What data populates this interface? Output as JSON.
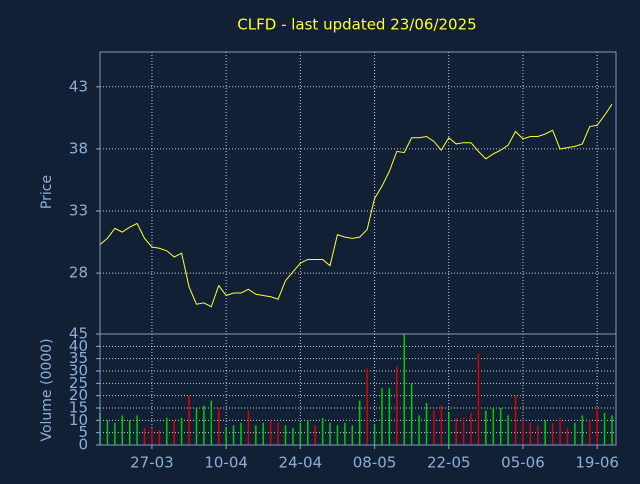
{
  "chart_data": [
    {
      "type": "line",
      "title": "CLFD - last updated 23/06/2025",
      "ylabel": "Price",
      "color": "#ffff33",
      "values": [
        30.3,
        30.8,
        31.6,
        31.3,
        31.7,
        32.0,
        30.8,
        30.1,
        30.0,
        29.8,
        29.3,
        29.6,
        26.9,
        25.5,
        25.6,
        25.3,
        27.0,
        26.2,
        26.4,
        26.4,
        26.7,
        26.3,
        26.2,
        26.1,
        25.9,
        27.4,
        28.1,
        28.8,
        29.1,
        29.1,
        29.1,
        28.6,
        31.1,
        30.9,
        30.8,
        30.9,
        31.5,
        34.0,
        35.0,
        36.2,
        37.8,
        37.7,
        38.9,
        38.9,
        39.0,
        38.6,
        37.9,
        38.9,
        38.4,
        38.5,
        38.5,
        37.8,
        37.2,
        37.6,
        37.9,
        38.3,
        39.4,
        38.8,
        39.0,
        39.0,
        39.2,
        39.5,
        38.0,
        38.1,
        38.2,
        38.4,
        39.8,
        39.9,
        40.7,
        41.6
      ],
      "ylim": [
        23.1,
        45.8
      ],
      "yticks": [
        28,
        33,
        38,
        43
      ],
      "grid": true
    },
    {
      "type": "bar",
      "ylabel": "Volume (0000)",
      "categories": [
        null,
        null,
        null,
        null,
        null,
        null,
        null,
        "27-03",
        null,
        null,
        null,
        null,
        null,
        null,
        null,
        null,
        null,
        "10-04",
        null,
        null,
        null,
        null,
        null,
        null,
        null,
        null,
        null,
        "24-04",
        null,
        null,
        null,
        null,
        null,
        null,
        null,
        null,
        null,
        "08-05",
        null,
        null,
        null,
        null,
        null,
        null,
        null,
        null,
        null,
        "22-05",
        null,
        null,
        null,
        null,
        null,
        null,
        null,
        null,
        null,
        "05-06",
        null,
        null,
        null,
        null,
        null,
        null,
        null,
        null,
        null,
        "19-06",
        null,
        null
      ],
      "values": [
        13,
        10,
        9,
        12,
        10,
        12,
        7,
        7,
        6,
        11,
        10,
        11,
        20,
        15,
        16,
        18,
        15,
        7,
        8,
        9,
        14,
        8,
        9,
        10,
        9,
        8,
        7,
        9,
        10,
        8,
        11,
        9,
        8,
        9,
        8,
        18,
        31,
        8,
        23,
        23,
        32,
        45,
        25,
        12,
        17,
        14,
        16,
        13,
        11,
        11,
        13,
        37,
        14,
        15,
        15,
        12,
        20,
        10,
        9,
        8,
        10,
        9,
        11,
        7,
        9,
        12,
        10,
        15,
        13,
        12
      ],
      "colors": [
        "#00cc00",
        "#00cc00",
        "#00cc00",
        "#00cc00",
        "#00cc00",
        "#00cc00",
        "#dd0000",
        "#dd0000",
        "#dd0000",
        "#00cc00",
        "#dd0000",
        "#00cc00",
        "#dd0000",
        "#00cc00",
        "#00cc00",
        "#00cc00",
        "#dd0000",
        "#00cc00",
        "#00cc00",
        "#00cc00",
        "#dd0000",
        "#00cc00",
        "#00cc00",
        "#dd0000",
        "#dd0000",
        "#00cc00",
        "#00cc00",
        "#00cc00",
        "#00cc00",
        "#dd0000",
        "#00cc00",
        "#00cc00",
        "#00cc00",
        "#00cc00",
        "#00cc00",
        "#00cc00",
        "#dd0000",
        "#00cc00",
        "#00cc00",
        "#00cc00",
        "#dd0000",
        "#00cc00",
        "#00cc00",
        "#00cc00",
        "#00cc00",
        "#dd0000",
        "#dd0000",
        "#00cc00",
        "#dd0000",
        "#dd0000",
        "#dd0000",
        "#dd0000",
        "#00cc00",
        "#00cc00",
        "#00cc00",
        "#00cc00",
        "#dd0000",
        "#dd0000",
        "#dd0000",
        "#dd0000",
        "#00cc00",
        "#dd0000",
        "#dd0000",
        "#dd0000",
        "#00cc00",
        "#00cc00",
        "#dd0000",
        "#dd0000",
        "#00cc00",
        "#00cc00"
      ],
      "ylim": [
        0,
        45
      ],
      "yticks": [
        0,
        5,
        10,
        15,
        20,
        25,
        30,
        35,
        40,
        45
      ],
      "grid": true
    }
  ]
}
